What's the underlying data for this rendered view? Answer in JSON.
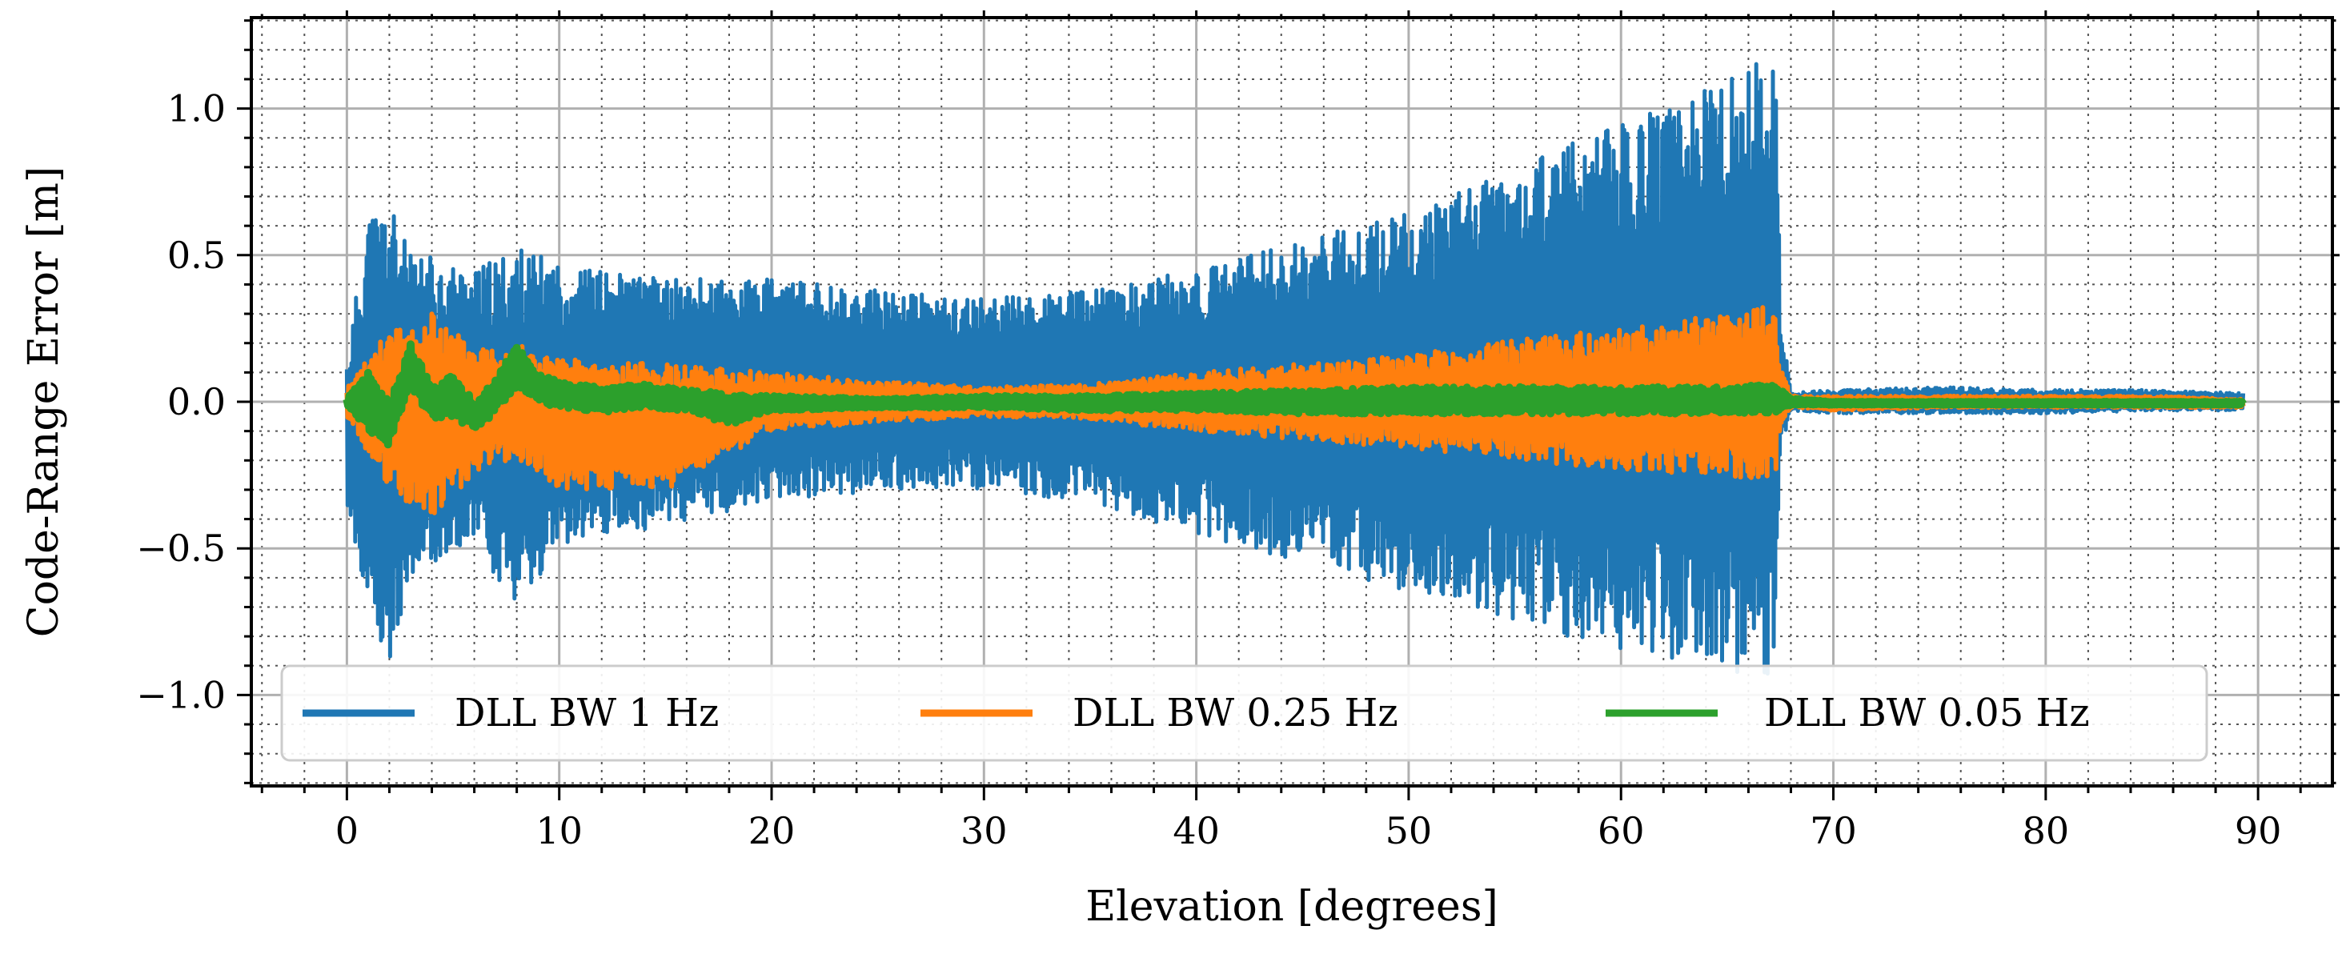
{
  "chart_data": {
    "type": "line",
    "title": "",
    "xlabel": "Elevation [degrees]",
    "ylabel": "Code-Range Error [m]",
    "xlim": [
      -4.5,
      93.5
    ],
    "ylim": [
      -1.31,
      1.31
    ],
    "xticks": [
      0,
      10,
      20,
      30,
      40,
      50,
      60,
      70,
      80,
      90
    ],
    "xtick_labels": [
      "0",
      "10",
      "20",
      "30",
      "40",
      "50",
      "60",
      "70",
      "80",
      "90"
    ],
    "yticks": [
      1.0,
      0.5,
      0.0,
      -0.5,
      -1.0
    ],
    "ytick_labels": [
      "1.0",
      "0.5",
      "0.0",
      "−0.5",
      "−1.0"
    ],
    "grid": "major solid, minor dotted",
    "legend_position": "bottom, three columns",
    "series": [
      {
        "name": "DLL BW 1 Hz",
        "color": "#1f77b4",
        "envelope": {
          "x": [
            0.0,
            1.0,
            2.0,
            3.0,
            4.0,
            6.0,
            8.0,
            10.0,
            15.0,
            20.0,
            25.0,
            30.0,
            35.0,
            40.0,
            45.0,
            50.0,
            55.0,
            60.0,
            65.0,
            67.3,
            67.5,
            68.0,
            70.0,
            75.0,
            80.0,
            85.0,
            89.3
          ],
          "upper": [
            0.15,
            0.65,
            0.7,
            0.5,
            0.5,
            0.45,
            0.53,
            0.47,
            0.42,
            0.42,
            0.38,
            0.35,
            0.38,
            0.45,
            0.55,
            0.65,
            0.8,
            0.95,
            1.1,
            1.2,
            0.3,
            0.03,
            0.04,
            0.05,
            0.04,
            0.04,
            0.03
          ],
          "lower": [
            -0.35,
            -0.75,
            -0.92,
            -0.65,
            -0.55,
            -0.5,
            -0.7,
            -0.5,
            -0.42,
            -0.35,
            -0.3,
            -0.3,
            -0.35,
            -0.45,
            -0.55,
            -0.65,
            -0.75,
            -0.85,
            -0.92,
            -0.93,
            -0.2,
            -0.03,
            -0.04,
            -0.04,
            -0.04,
            -0.03,
            -0.03
          ]
        }
      },
      {
        "name": "DLL BW 0.25 Hz",
        "color": "#ff7f0e",
        "envelope": {
          "x": [
            0.0,
            2.0,
            4.0,
            6.0,
            8.0,
            10.0,
            15.0,
            20.0,
            25.0,
            30.0,
            35.0,
            40.0,
            45.0,
            50.0,
            55.0,
            60.0,
            65.0,
            67.3,
            67.5,
            68.0,
            70.0,
            75.0,
            80.0,
            85.0,
            89.3
          ],
          "upper": [
            0.05,
            0.25,
            0.3,
            0.2,
            0.2,
            0.15,
            0.13,
            0.1,
            0.07,
            0.05,
            0.06,
            0.1,
            0.13,
            0.16,
            0.21,
            0.25,
            0.3,
            0.33,
            0.12,
            0.02,
            0.02,
            0.02,
            0.02,
            0.02,
            0.01
          ],
          "lower": [
            -0.05,
            -0.3,
            -0.4,
            -0.25,
            -0.2,
            -0.3,
            -0.3,
            -0.1,
            -0.07,
            -0.05,
            -0.06,
            -0.1,
            -0.13,
            -0.16,
            -0.2,
            -0.23,
            -0.26,
            -0.26,
            -0.08,
            -0.02,
            -0.03,
            -0.02,
            -0.02,
            -0.02,
            -0.02
          ]
        }
      },
      {
        "name": "DLL BW 0.05 Hz",
        "color": "#2ca02c",
        "envelope": {
          "x": [
            0.0,
            1.0,
            2.0,
            3.0,
            4.0,
            5.0,
            6.0,
            7.0,
            8.0,
            9.0,
            10.0,
            12.0,
            14.0,
            16.0,
            18.0,
            20.0,
            25.0,
            30.0,
            35.0,
            40.0,
            45.0,
            50.0,
            55.0,
            60.0,
            65.0,
            67.3,
            68.0,
            70.0,
            75.0,
            80.0,
            85.0,
            89.3
          ],
          "upper": [
            0.01,
            0.1,
            0.0,
            0.2,
            0.05,
            0.1,
            0.0,
            0.08,
            0.2,
            0.1,
            0.07,
            0.05,
            0.06,
            0.04,
            0.03,
            0.02,
            0.01,
            0.02,
            0.02,
            0.03,
            0.04,
            0.05,
            0.05,
            0.05,
            0.05,
            0.06,
            0.01,
            0.0,
            0.0,
            0.0,
            0.0,
            0.0
          ],
          "lower": [
            -0.01,
            -0.1,
            -0.15,
            0.05,
            -0.06,
            -0.05,
            -0.1,
            -0.04,
            0.05,
            0.0,
            -0.02,
            -0.04,
            -0.02,
            -0.03,
            -0.08,
            -0.03,
            -0.02,
            -0.02,
            -0.03,
            -0.03,
            -0.04,
            -0.04,
            -0.04,
            -0.04,
            -0.04,
            -0.04,
            -0.01,
            -0.01,
            -0.01,
            -0.01,
            -0.01,
            -0.01
          ]
        }
      }
    ]
  }
}
